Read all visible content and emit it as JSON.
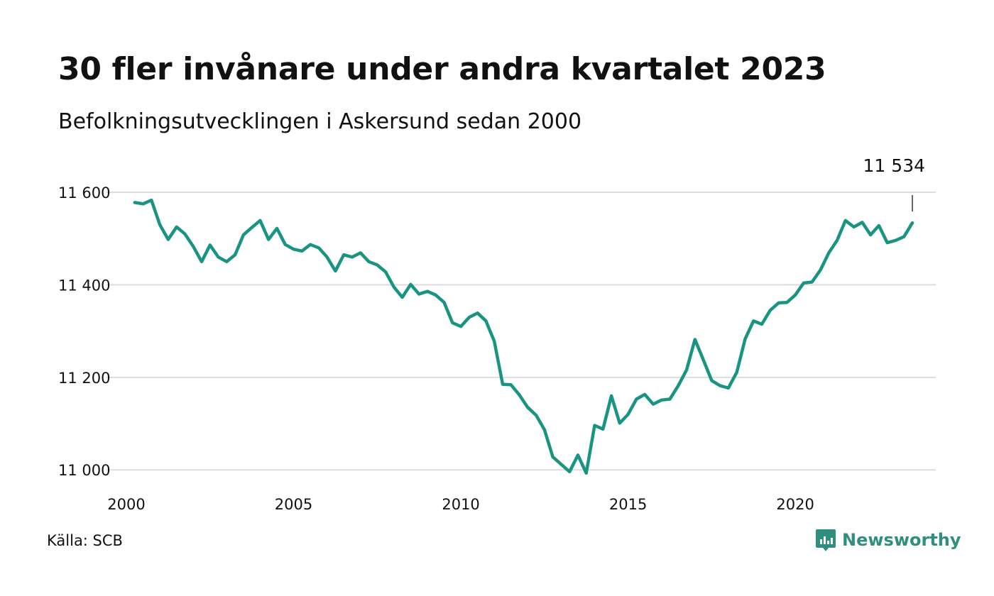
{
  "title": "30 fler invånare under andra kvartalet 2023",
  "subtitle": "Befolkningsutvecklingen i Askersund sedan 2000",
  "source": "Källa: SCB",
  "brand": "Newsworthy",
  "colors": {
    "line": "#1a9482",
    "grid": "#dddddd",
    "brand": "#2f8f7f"
  },
  "chart_data": {
    "type": "line",
    "title": "30 fler invånare under andra kvartalet 2023",
    "subtitle": "Befolkningsutvecklingen i Askersund sedan 2000",
    "xlabel": "",
    "ylabel": "",
    "xlim": [
      2000,
      2024.2
    ],
    "ylim": [
      10985,
      11620
    ],
    "x_ticks": [
      {
        "value": 2000,
        "label": "2000"
      },
      {
        "value": 2005,
        "label": "2005"
      },
      {
        "value": 2010,
        "label": "2010"
      },
      {
        "value": 2015,
        "label": "2015"
      },
      {
        "value": 2020,
        "label": "2020"
      }
    ],
    "y_ticks": [
      {
        "value": 11000,
        "label": "11 000"
      },
      {
        "value": 11200,
        "label": "11 200"
      },
      {
        "value": 11400,
        "label": "11 400"
      },
      {
        "value": 11600,
        "label": "11 600"
      }
    ],
    "grid": true,
    "annotation": {
      "x": 2023.5,
      "y": 11534,
      "label": "11 534"
    },
    "x": [
      2000.25,
      2000.5,
      2000.75,
      2001.0,
      2001.25,
      2001.5,
      2001.75,
      2002.0,
      2002.25,
      2002.5,
      2002.75,
      2003.0,
      2003.25,
      2003.5,
      2003.75,
      2004.0,
      2004.25,
      2004.5,
      2004.75,
      2005.0,
      2005.25,
      2005.5,
      2005.75,
      2006.0,
      2006.25,
      2006.5,
      2006.75,
      2007.0,
      2007.25,
      2007.5,
      2007.75,
      2008.0,
      2008.25,
      2008.5,
      2008.75,
      2009.0,
      2009.25,
      2009.5,
      2009.75,
      2010.0,
      2010.25,
      2010.5,
      2010.75,
      2011.0,
      2011.25,
      2011.5,
      2011.75,
      2012.0,
      2012.25,
      2012.5,
      2012.75,
      2013.0,
      2013.25,
      2013.5,
      2013.75,
      2014.0,
      2014.25,
      2014.5,
      2014.75,
      2015.0,
      2015.25,
      2015.5,
      2015.75,
      2016.0,
      2016.25,
      2016.5,
      2016.75,
      2017.0,
      2017.25,
      2017.5,
      2017.75,
      2018.0,
      2018.25,
      2018.5,
      2018.75,
      2019.0,
      2019.25,
      2019.5,
      2019.75,
      2020.0,
      2020.25,
      2020.5,
      2020.75,
      2021.0,
      2021.25,
      2021.5,
      2021.75,
      2022.0,
      2022.25,
      2022.5,
      2022.75,
      2023.0,
      2023.25,
      2023.5
    ],
    "series": [
      {
        "values": [
          11578,
          11575,
          11583,
          11530,
          11498,
          11525,
          11510,
          11483,
          11450,
          11486,
          11460,
          11450,
          11465,
          11508,
          11524,
          11539,
          11498,
          11522,
          11487,
          11477,
          11473,
          11487,
          11480,
          11460,
          11430,
          11465,
          11460,
          11469,
          11450,
          11443,
          11428,
          11395,
          11373,
          11401,
          11380,
          11386,
          11378,
          11362,
          11318,
          11310,
          11330,
          11339,
          11322,
          11278,
          11185,
          11184,
          11162,
          11135,
          11118,
          11087,
          11028,
          11012,
          10996,
          11032,
          10993,
          11096,
          11088,
          11160,
          11101,
          11120,
          11153,
          11163,
          11142,
          11151,
          11153,
          11182,
          11216,
          11282,
          11238,
          11193,
          11182,
          11177,
          11211,
          11283,
          11322,
          11315,
          11345,
          11361,
          11362,
          11378,
          11404,
          11406,
          11432,
          11469,
          11496,
          11539,
          11525,
          11535,
          11508,
          11528,
          11491,
          11496,
          11504,
          11534
        ]
      }
    ]
  }
}
